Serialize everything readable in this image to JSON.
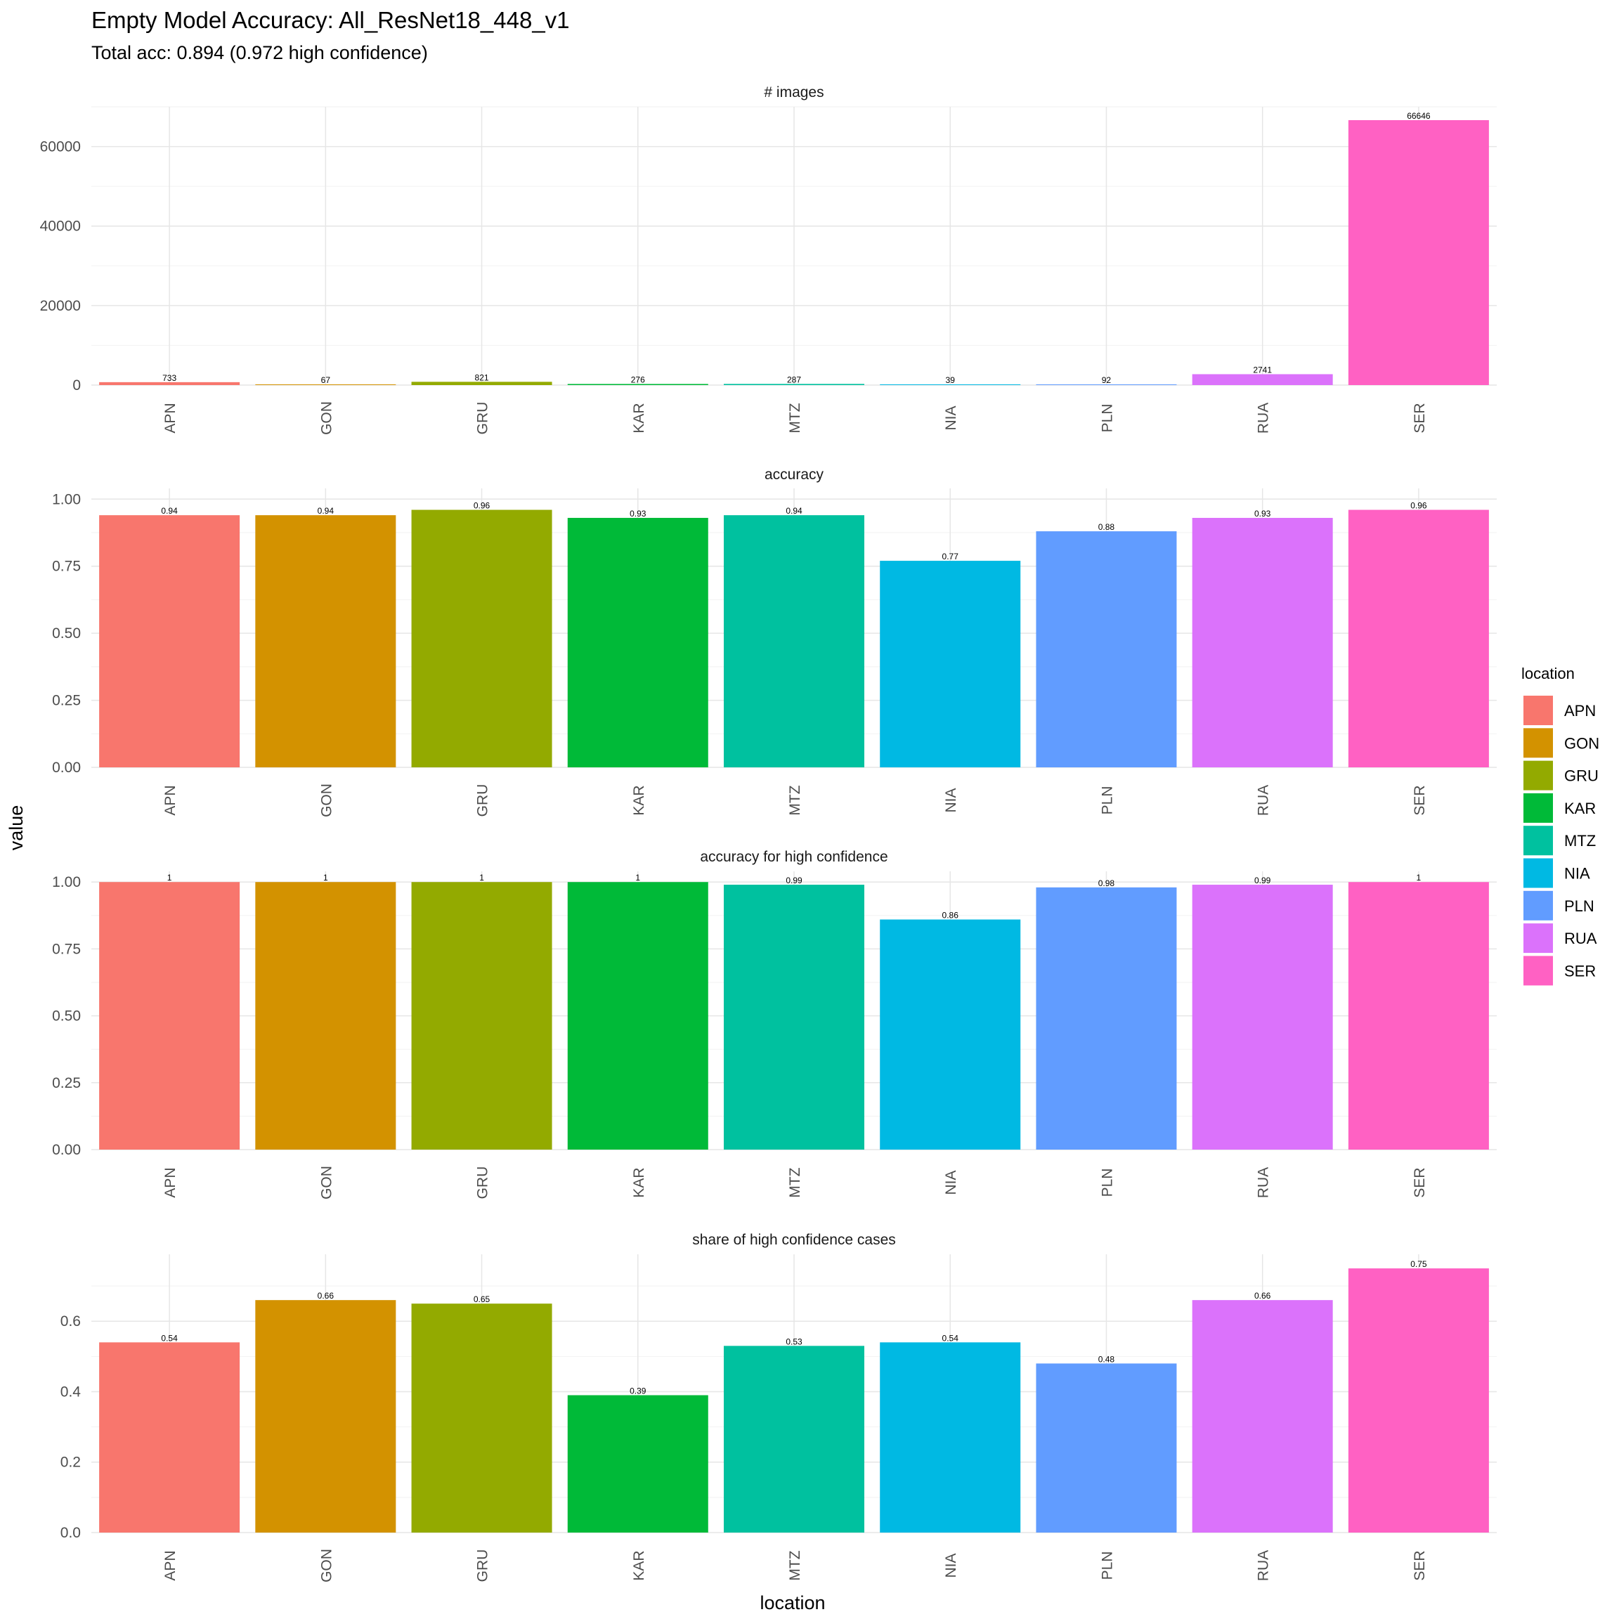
{
  "chart_data": {
    "type": "bar",
    "title": "Empty Model Accuracy: All_ResNet18_448_v1",
    "subtitle": "Total acc: 0.894 (0.972 high confidence)",
    "xlabel": "location",
    "ylabel": "value",
    "categories": [
      "APN",
      "GON",
      "GRU",
      "KAR",
      "MTZ",
      "NIA",
      "PLN",
      "RUA",
      "SER"
    ],
    "colors": [
      "#F8766D",
      "#D39200",
      "#93AA00",
      "#00BA38",
      "#00C19F",
      "#00B9E3",
      "#619CFF",
      "#DB72FB",
      "#FF61C3"
    ],
    "legend": {
      "title": "location",
      "position": "right",
      "entries": [
        "APN",
        "GON",
        "GRU",
        "KAR",
        "MTZ",
        "NIA",
        "PLN",
        "RUA",
        "SER"
      ]
    },
    "grid": true,
    "facets": [
      {
        "name": "# images",
        "values": [
          733,
          67,
          821,
          276,
          287,
          39,
          92,
          2741,
          66646
        ],
        "labels": [
          "733",
          "67",
          "821",
          "276",
          "287",
          "39",
          "92",
          "2741",
          "66646"
        ],
        "ylim": [
          0,
          70000
        ],
        "yticks": [
          0,
          20000,
          40000,
          60000
        ],
        "yticklabels": [
          "0",
          "20000",
          "40000",
          "60000"
        ]
      },
      {
        "name": "accuracy",
        "values": [
          0.94,
          0.94,
          0.96,
          0.93,
          0.94,
          0.77,
          0.88,
          0.93,
          0.96
        ],
        "labels": [
          "0.94",
          "0.94",
          "0.96",
          "0.93",
          "0.94",
          "0.77",
          "0.88",
          "0.93",
          "0.96"
        ],
        "ylim": [
          0,
          1.04
        ],
        "yticks": [
          0,
          0.25,
          0.5,
          0.75,
          1
        ],
        "yticklabels": [
          "0.00",
          "0.25",
          "0.50",
          "0.75",
          "1.00"
        ]
      },
      {
        "name": "accuracy for high confidence",
        "values": [
          1,
          1,
          1,
          1,
          0.99,
          0.86,
          0.98,
          0.99,
          1
        ],
        "labels": [
          "1",
          "1",
          "1",
          "1",
          "0.99",
          "0.86",
          "0.98",
          "0.99",
          "1"
        ],
        "ylim": [
          0,
          1.04
        ],
        "yticks": [
          0,
          0.25,
          0.5,
          0.75,
          1
        ],
        "yticklabels": [
          "0.00",
          "0.25",
          "0.50",
          "0.75",
          "1.00"
        ]
      },
      {
        "name": "share of high confidence cases",
        "values": [
          0.54,
          0.66,
          0.65,
          0.39,
          0.53,
          0.54,
          0.48,
          0.66,
          0.75
        ],
        "labels": [
          "0.54",
          "0.66",
          "0.65",
          "0.39",
          "0.53",
          "0.54",
          "0.48",
          "0.66",
          "0.75"
        ],
        "ylim": [
          0,
          0.79
        ],
        "yticks": [
          0,
          0.2,
          0.4,
          0.6
        ],
        "yticklabels": [
          "0.0",
          "0.2",
          "0.4",
          "0.6"
        ]
      }
    ]
  }
}
